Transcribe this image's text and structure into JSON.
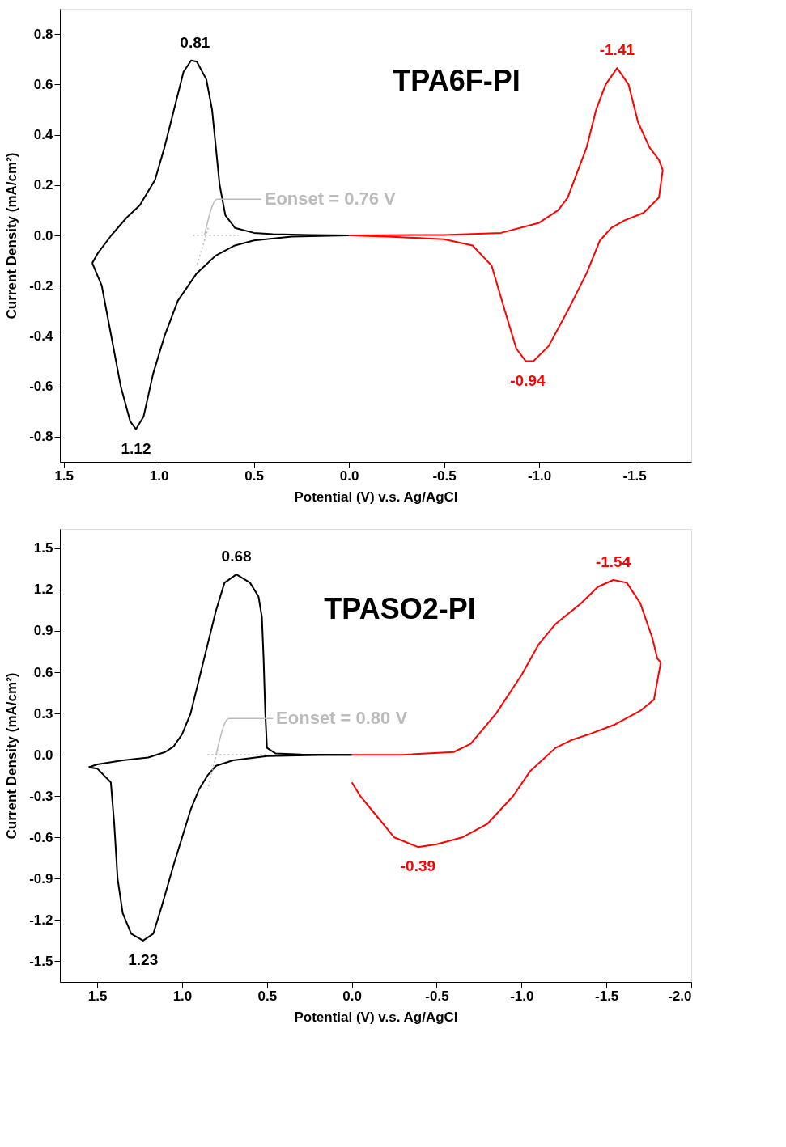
{
  "chart_data": [
    {
      "type": "line",
      "title": "TPA6F-PI",
      "xlabel": "Potential (V) v.s. Ag/AgCl",
      "ylabel": "Current Density (mA/cm²)",
      "xlim": [
        1.52,
        -1.8
      ],
      "ylim": [
        -0.9,
        0.9
      ],
      "xticks": [
        1.5,
        {
          "value": 1.0,
          "label": "1.0"
        },
        0.5,
        {
          "value": 0,
          "label": "0.0"
        },
        -0.5,
        {
          "value": -1.0,
          "label": "-1.0"
        },
        -1.5
      ],
      "yticks": [
        -0.8,
        -0.6,
        -0.4,
        -0.2,
        {
          "value": 0,
          "label": "0.0"
        },
        0.2,
        0.4,
        0.6,
        0.8
      ],
      "grid": false,
      "legend": false,
      "marker": "none",
      "line_style": "solid",
      "series": [
        {
          "color": "#000000",
          "x": [
            0.0,
            0.2,
            0.4,
            0.5,
            0.6,
            0.65,
            0.68,
            0.7,
            0.72,
            0.75,
            0.8,
            0.83,
            0.87,
            0.92,
            0.97,
            1.02,
            1.1,
            1.17,
            1.25,
            1.32,
            1.35
          ],
          "values": [
            0.0,
            0.002,
            0.005,
            0.01,
            0.03,
            0.08,
            0.2,
            0.35,
            0.5,
            0.62,
            0.69,
            0.695,
            0.65,
            0.5,
            0.35,
            0.22,
            0.12,
            0.07,
            0.0,
            -0.07,
            -0.11
          ]
        },
        {
          "color": "#000000",
          "x": [
            1.35,
            1.3,
            1.25,
            1.2,
            1.15,
            1.12,
            1.08,
            1.03,
            0.97,
            0.9,
            0.8,
            0.7,
            0.6,
            0.5,
            0.3,
            0.0
          ],
          "values": [
            -0.11,
            -0.2,
            -0.4,
            -0.6,
            -0.74,
            -0.77,
            -0.72,
            -0.55,
            -0.4,
            -0.26,
            -0.15,
            -0.08,
            -0.04,
            -0.02,
            -0.005,
            0.0
          ]
        },
        {
          "color": "#ff0000",
          "x": [
            0.0,
            -0.5,
            -0.8,
            -1.0,
            -1.1,
            -1.15,
            -1.25,
            -1.3,
            -1.35,
            -1.41,
            -1.47,
            -1.52,
            -1.58,
            -1.63,
            -1.65
          ],
          "values": [
            0.0,
            0.002,
            0.01,
            0.05,
            0.1,
            0.15,
            0.35,
            0.5,
            0.6,
            0.665,
            0.6,
            0.45,
            0.35,
            0.3,
            0.26
          ]
        },
        {
          "color": "#ff0000",
          "x": [
            -1.65,
            -1.63,
            -1.55,
            -1.45,
            -1.38,
            -1.32,
            -1.25,
            -1.15,
            -1.05,
            -0.97,
            -0.93,
            -0.88,
            -0.82,
            -0.75,
            -0.65,
            -0.5,
            -0.2,
            0.0
          ],
          "values": [
            0.26,
            0.15,
            0.09,
            0.06,
            0.03,
            -0.02,
            -0.15,
            -0.3,
            -0.44,
            -0.5,
            -0.5,
            -0.45,
            -0.3,
            -0.12,
            -0.04,
            -0.015,
            -0.005,
            0.0
          ]
        },
        {
          "color": "#bbbbbb",
          "line_style": "dotted",
          "x": [
            0.82,
            0.58
          ],
          "values": [
            0.0,
            0.0
          ]
        },
        {
          "color": "#bbbbbb",
          "line_style": "dotted",
          "x": [
            0.74,
            0.8
          ],
          "values": [
            0.03,
            -0.12
          ]
        }
      ],
      "annotations": [
        {
          "text": "0.81",
          "x": 0.81,
          "y": 0.695
        },
        {
          "text": "1.12",
          "x": 1.12,
          "y": -0.77
        },
        {
          "text": "-1.41",
          "x": -1.41,
          "y": 0.665
        },
        {
          "text": "-0.94",
          "x": -0.94,
          "y": -0.5
        },
        {
          "text": "Eonset = 0.76 V",
          "x": 0.76,
          "y": 0.0
        }
      ]
    },
    {
      "type": "line",
      "title": "TPASO2-PI",
      "xlabel": "Potential (V) v.s. Ag/AgCl",
      "ylabel": "Current Density (mA/cm²)",
      "xlim": [
        1.72,
        -2.0
      ],
      "ylim": [
        -1.65,
        1.64
      ],
      "xticks": [
        1.5,
        {
          "value": 1.0,
          "label": "1.0"
        },
        0.5,
        {
          "value": 0,
          "label": "0.0"
        },
        -0.5,
        {
          "value": -1.0,
          "label": "-1.0"
        },
        -1.5,
        {
          "value": -2.0,
          "label": "-2.0"
        }
      ],
      "yticks": [
        -1.5,
        -1.2,
        -0.9,
        -0.6,
        -0.3,
        {
          "value": 0,
          "label": "0.0"
        },
        0.3,
        0.6,
        0.9,
        1.2,
        1.5
      ],
      "grid": false,
      "legend": false,
      "marker": "none",
      "line_style": "solid",
      "series": [
        {
          "color": "#000000",
          "x": [
            0.0,
            0.3,
            0.45,
            0.5,
            0.51,
            0.52,
            0.53,
            0.55,
            0.6,
            0.68,
            0.75,
            0.8,
            0.85,
            0.9,
            0.95,
            1.0,
            1.05,
            1.1,
            1.2,
            1.35,
            1.5,
            1.55
          ],
          "values": [
            0.0,
            0.003,
            0.01,
            0.05,
            0.3,
            0.7,
            1.0,
            1.15,
            1.25,
            1.31,
            1.25,
            1.05,
            0.8,
            0.55,
            0.3,
            0.15,
            0.06,
            0.02,
            -0.02,
            -0.04,
            -0.07,
            -0.09
          ]
        },
        {
          "color": "#000000",
          "x": [
            1.55,
            1.5,
            1.42,
            1.4,
            1.38,
            1.35,
            1.3,
            1.23,
            1.17,
            1.12,
            1.05,
            1.0,
            0.95,
            0.9,
            0.85,
            0.8,
            0.7,
            0.5,
            0.2,
            0.0
          ],
          "values": [
            -0.09,
            -0.1,
            -0.2,
            -0.5,
            -0.9,
            -1.15,
            -1.3,
            -1.35,
            -1.3,
            -1.1,
            -0.8,
            -0.6,
            -0.4,
            -0.25,
            -0.15,
            -0.08,
            -0.04,
            -0.01,
            -0.002,
            0.0
          ]
        },
        {
          "color": "#ff0000",
          "x": [
            0.0,
            -0.3,
            -0.6,
            -0.7,
            -0.85,
            -1.0,
            -1.1,
            -1.2,
            -1.35,
            -1.45,
            -1.54,
            -1.62,
            -1.7,
            -1.77,
            -1.8,
            -1.82
          ],
          "values": [
            0.0,
            0.0,
            0.02,
            0.08,
            0.3,
            0.58,
            0.8,
            0.95,
            1.1,
            1.22,
            1.27,
            1.25,
            1.1,
            0.85,
            0.7,
            0.67
          ]
        },
        {
          "color": "#ff0000",
          "x": [
            -1.82,
            -1.78,
            -1.7,
            -1.55,
            -1.4,
            -1.3,
            -1.2,
            -1.05,
            -0.95,
            -0.8,
            -0.65,
            -0.5,
            -0.39,
            -0.25,
            -0.15,
            -0.05,
            0.0
          ],
          "values": [
            0.67,
            0.4,
            0.32,
            0.22,
            0.15,
            0.11,
            0.05,
            -0.12,
            -0.3,
            -0.5,
            -0.6,
            -0.65,
            -0.67,
            -0.6,
            -0.45,
            -0.3,
            -0.2
          ]
        },
        {
          "color": "#bbbbbb",
          "line_style": "dotted",
          "x": [
            0.85,
            0.5
          ],
          "values": [
            0.0,
            0.0
          ]
        },
        {
          "color": "#bbbbbb",
          "line_style": "dotted",
          "x": [
            0.79,
            0.85
          ],
          "values": [
            0.04,
            -0.25
          ]
        }
      ],
      "annotations": [
        {
          "text": "0.68",
          "x": 0.68,
          "y": 1.31
        },
        {
          "text": "1.23",
          "x": 1.23,
          "y": -1.35
        },
        {
          "text": "-1.54",
          "x": -1.54,
          "y": 1.27
        },
        {
          "text": "-0.39",
          "x": -0.39,
          "y": -0.67
        },
        {
          "text": "Eonset = 0.80 V",
          "x": 0.8,
          "y": 0.0
        }
      ]
    }
  ]
}
